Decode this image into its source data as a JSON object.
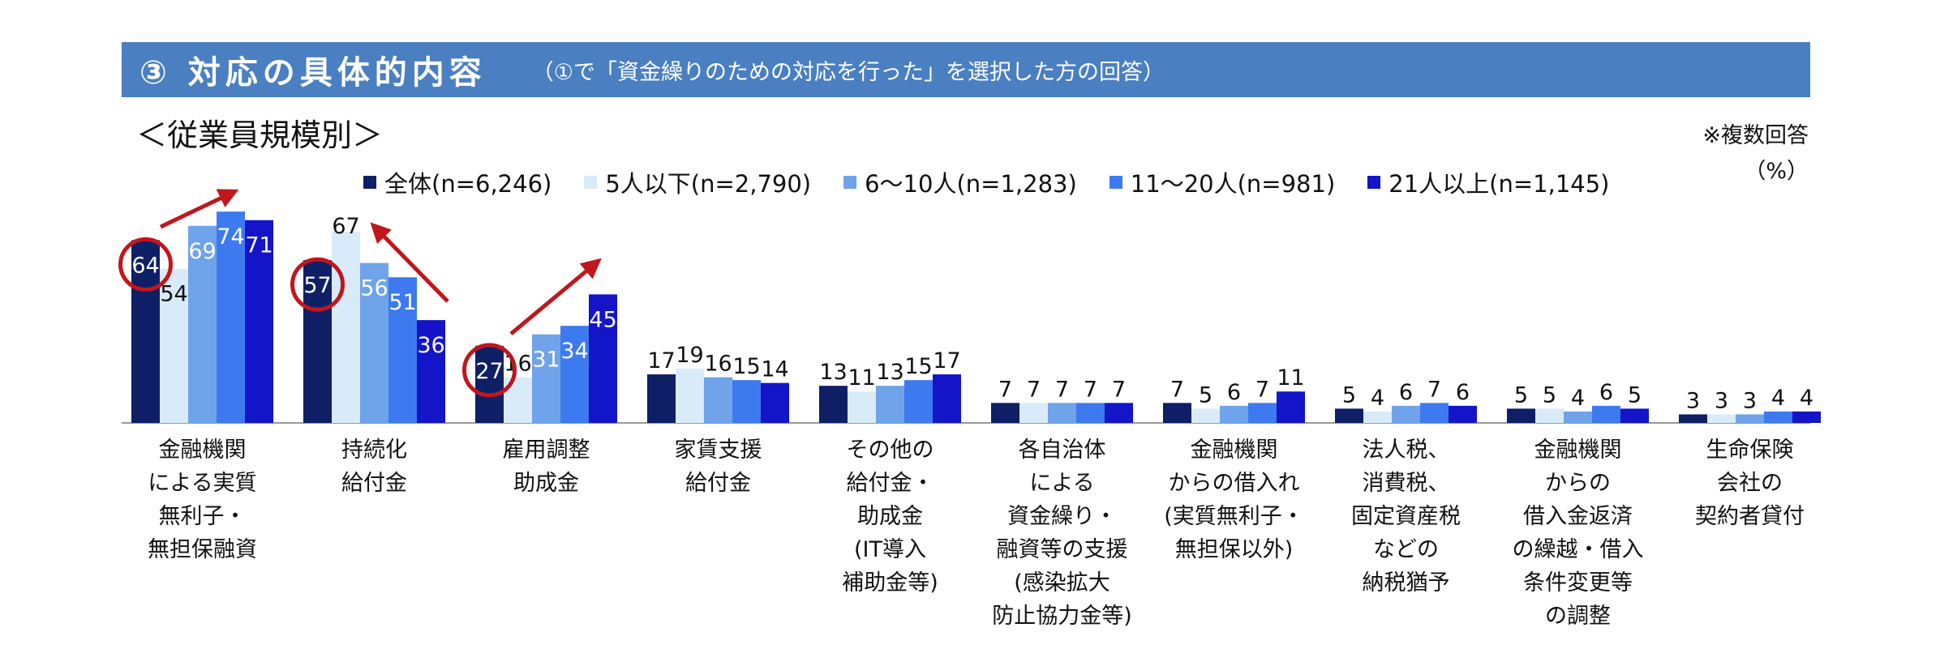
{
  "header": {
    "title": "③ 対応の具体的内容",
    "subtitle": "（①で「資金繰りのための対応を行った」を選択した方の回答）"
  },
  "subheading": "＜従業員規模別＞",
  "note": {
    "line1": "※複数回答",
    "line2": "（%）"
  },
  "colors": {
    "banner": "#4a7fc1",
    "highlight_circle": "#c0161c",
    "arrow": "#c0161c",
    "axis": "#9a9a9a"
  },
  "chart_data": {
    "type": "bar",
    "ylabel": "",
    "xlabel": "",
    "ylim": [
      0,
      80
    ],
    "legend_position": "top",
    "grid": false,
    "categories": [
      "金融機関\nによる実質\n無利子・\n無担保融資",
      "持続化\n給付金",
      "雇用調整\n助成金",
      "家賃支援\n給付金",
      "その他の\n給付金・\n助成金\n(IT導入\n補助金等)",
      "各自治体\nによる\n資金繰り・\n融資等の支援\n(感染拡大\n防止協力金等)",
      "金融機関\nからの借入れ\n(実質無利子・\n無担保以外)",
      "法人税、\n消費税、\n固定資産税\nなどの\n納税猶予",
      "金融機関\nからの\n借入金返済\nの繰越・借入\n条件変更等\nの調整",
      "生命保険\n会社の\n契約者貸付"
    ],
    "series": [
      {
        "name": "全体(n=6,246)",
        "color": "#0f1f66",
        "values": [
          64,
          57,
          27,
          17,
          13,
          7,
          7,
          5,
          5,
          3
        ]
      },
      {
        "name": "5人以下(n=2,790)",
        "color": "#d9ebf9",
        "values": [
          54,
          67,
          16,
          19,
          11,
          7,
          5,
          4,
          5,
          3
        ]
      },
      {
        "name": "6～10人(n=1,283)",
        "color": "#6fa3ea",
        "values": [
          69,
          56,
          31,
          16,
          13,
          7,
          6,
          6,
          4,
          3
        ]
      },
      {
        "name": "11～20人(n=981)",
        "color": "#3d7af0",
        "values": [
          74,
          51,
          34,
          15,
          15,
          7,
          7,
          7,
          6,
          4
        ]
      },
      {
        "name": "21人以上(n=1,145)",
        "color": "#1414c8",
        "values": [
          71,
          36,
          45,
          14,
          17,
          7,
          11,
          6,
          5,
          4
        ]
      }
    ],
    "annotations": {
      "circled": [
        {
          "category_index": 0,
          "series_index": 0
        },
        {
          "category_index": 1,
          "series_index": 0
        },
        {
          "category_index": 2,
          "series_index": 0
        }
      ],
      "trend_arrows": [
        "up",
        "down",
        "up"
      ]
    }
  }
}
